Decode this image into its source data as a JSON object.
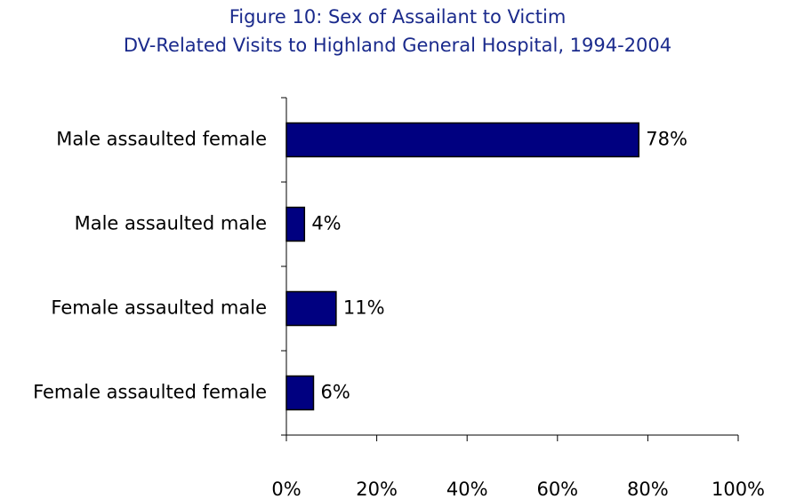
{
  "chart_data": {
    "type": "hbar",
    "title": "Figure 10: Sex of Assailant to Victim",
    "subtitle": "DV-Related Visits to Highland General Hospital, 1994-2004",
    "categories": [
      "Male assaulted female",
      "Male assaulted male",
      "Female assaulted male",
      "Female assaulted female"
    ],
    "values": [
      78,
      4,
      11,
      6
    ],
    "value_labels": [
      "78%",
      "4%",
      "11%",
      "6%"
    ],
    "color": "#000080",
    "xlim": [
      0,
      100
    ],
    "xticks": [
      {
        "value": 0,
        "label": "0%"
      },
      {
        "value": 20,
        "label": "20%"
      },
      {
        "value": 40,
        "label": "40%"
      },
      {
        "value": 60,
        "label": "60%"
      },
      {
        "value": 80,
        "label": "80%"
      },
      {
        "value": 100,
        "label": "100%"
      }
    ],
    "grid": false
  }
}
